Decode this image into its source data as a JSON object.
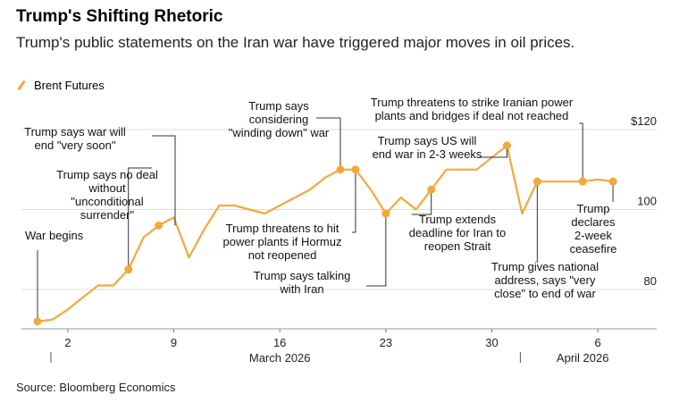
{
  "header": {
    "title": "Trump's Shifting Rhetoric",
    "subtitle": "Trump's public statements on the Iran war have triggered major moves in oil prices."
  },
  "legend": {
    "label": "Brent Futures"
  },
  "source": "Source: Bloomberg Economics",
  "colors": {
    "line": "#f2a93b",
    "dot": "#f2a93b",
    "grid": "#dddddd",
    "annotation": "#333333"
  },
  "chart_data": {
    "type": "line",
    "title": "Trump's Shifting Rhetoric",
    "series": [
      {
        "name": "Brent Futures",
        "points": [
          {
            "day": 0,
            "value": 72
          },
          {
            "day": 1,
            "value": 72.5
          },
          {
            "day": 2,
            "value": 75
          },
          {
            "day": 3,
            "value": 78
          },
          {
            "day": 4,
            "value": 81
          },
          {
            "day": 5,
            "value": 81
          },
          {
            "day": 6,
            "value": 85
          },
          {
            "day": 7,
            "value": 93
          },
          {
            "day": 8,
            "value": 96
          },
          {
            "day": 9,
            "value": 98
          },
          {
            "day": 10,
            "value": 88
          },
          {
            "day": 11,
            "value": 95
          },
          {
            "day": 12,
            "value": 101
          },
          {
            "day": 13,
            "value": 101
          },
          {
            "day": 14,
            "value": 100
          },
          {
            "day": 15,
            "value": 99
          },
          {
            "day": 16,
            "value": 101
          },
          {
            "day": 17,
            "value": 103
          },
          {
            "day": 18,
            "value": 105
          },
          {
            "day": 19,
            "value": 108
          },
          {
            "day": 20,
            "value": 110
          },
          {
            "day": 21,
            "value": 110
          },
          {
            "day": 22,
            "value": 105
          },
          {
            "day": 23,
            "value": 99
          },
          {
            "day": 24,
            "value": 103
          },
          {
            "day": 25,
            "value": 100
          },
          {
            "day": 26,
            "value": 105
          },
          {
            "day": 27,
            "value": 110
          },
          {
            "day": 28,
            "value": 110
          },
          {
            "day": 29,
            "value": 110
          },
          {
            "day": 30,
            "value": 113
          },
          {
            "day": 31,
            "value": 116
          },
          {
            "day": 32,
            "value": 99
          },
          {
            "day": 33,
            "value": 107
          },
          {
            "day": 34,
            "value": 107
          },
          {
            "day": 35,
            "value": 107
          },
          {
            "day": 36,
            "value": 107
          },
          {
            "day": 37,
            "value": 107.5
          },
          {
            "day": 38,
            "value": 107
          }
        ]
      }
    ],
    "x_ticks": [
      {
        "day": 2,
        "label": "2"
      },
      {
        "day": 9,
        "label": "9"
      },
      {
        "day": 16,
        "label": "16"
      },
      {
        "day": 23,
        "label": "23"
      },
      {
        "day": 30,
        "label": "30"
      },
      {
        "day": 37,
        "label": "6"
      }
    ],
    "month_labels": [
      {
        "day": 16,
        "label": "March 2026"
      },
      {
        "day": 36,
        "label": "April 2026"
      }
    ],
    "month_dividers": [
      1,
      32
    ],
    "y_ticks": [
      {
        "value": 80,
        "label": "80"
      },
      {
        "value": 100,
        "label": "100"
      },
      {
        "value": 120,
        "label": "$120"
      }
    ],
    "ylim": [
      72,
      123
    ],
    "xlim": [
      0,
      39
    ],
    "grid": true,
    "legend_position": "top-left",
    "annotations": [
      {
        "day": 0,
        "text": [
          "War begins"
        ],
        "anchor": "start",
        "lineAbove": true
      },
      {
        "day": 6,
        "text": [
          "Trump says war will",
          "end \"very soon\""
        ],
        "anchor": "middle",
        "lineAbove": true
      },
      {
        "day": 8,
        "text": [
          "Trump says no deal",
          "without",
          "\"unconditional",
          "surrender\""
        ],
        "anchor": "middle",
        "lineAbove": true
      },
      {
        "day": 20,
        "text": [
          "Trump says",
          "considering",
          "\"winding down\" war"
        ],
        "anchor": "middle",
        "lineAbove": true
      },
      {
        "day": 21,
        "text": [
          "Trump threatens to hit",
          "power plants if Hormuz",
          "not reopened"
        ],
        "anchor": "middle",
        "lineAbove": false
      },
      {
        "day": 23,
        "text": [
          "Trump says talking",
          "with Iran"
        ],
        "anchor": "middle",
        "lineAbove": false
      },
      {
        "day": 26,
        "text": [
          "Trump extends",
          "deadline for Iran to",
          "reopen Strait"
        ],
        "anchor": "middle",
        "lineAbove": false
      },
      {
        "day": 31,
        "text": [
          "Trump says US will",
          "end war in 2-3 weeks"
        ],
        "anchor": "middle",
        "lineAbove": true
      },
      {
        "day": 36,
        "text": [
          "Trump threatens to strike Iranian power",
          "plants and bridges if deal not reached"
        ],
        "anchor": "middle",
        "lineAbove": true
      },
      {
        "day": 33,
        "text": [
          "Trump gives national",
          "address, says \"very",
          "close\" to end of war"
        ],
        "anchor": "middle",
        "lineAbove": false
      },
      {
        "day": 38,
        "text": [
          "Trump",
          "declares",
          "2-week",
          "ceasefire"
        ],
        "anchor": "middle",
        "lineAbove": false
      }
    ]
  }
}
